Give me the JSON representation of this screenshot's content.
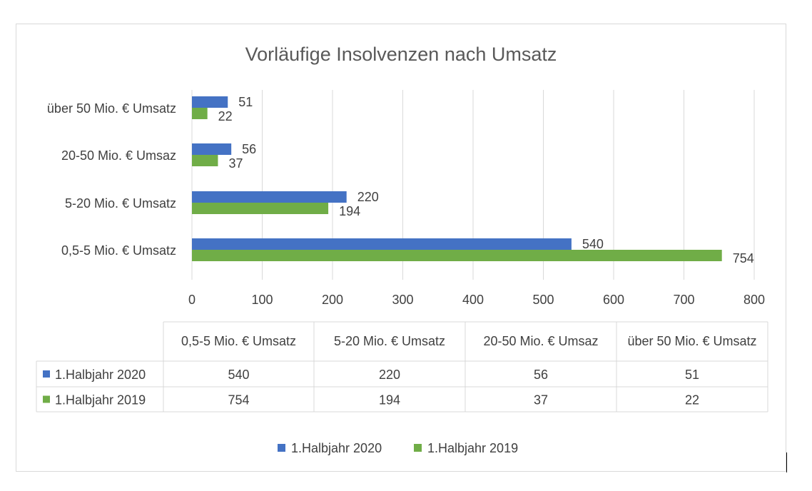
{
  "chart_data": {
    "type": "bar",
    "orientation": "horizontal",
    "title": "Vorläufige Insolvenzen nach Umsatz",
    "categories": [
      "0,5-5 Mio. € Umsatz",
      "5-20 Mio. € Umsatz",
      "20-50 Mio. € Umsaz",
      "über 50 Mio. € Umsatz"
    ],
    "series": [
      {
        "name": "1.Halbjahr 2020",
        "color": "#4472c4",
        "values": [
          540,
          220,
          56,
          51
        ]
      },
      {
        "name": "1.Halbjahr 2019",
        "color": "#70ad47",
        "values": [
          754,
          194,
          37,
          22
        ]
      }
    ],
    "xlim": [
      0,
      800
    ],
    "xticks": [
      0,
      100,
      200,
      300,
      400,
      500,
      600,
      700,
      800
    ],
    "grid": true,
    "data_labels": true,
    "data_table": true,
    "legend_position": "bottom"
  }
}
